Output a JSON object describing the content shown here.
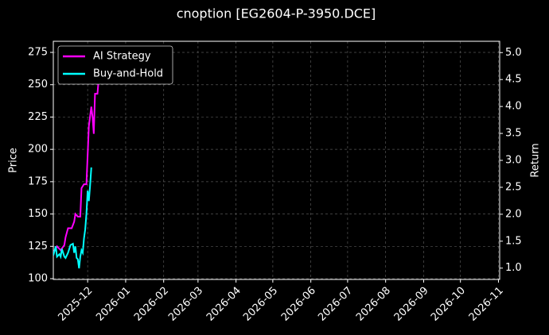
{
  "chart_data": {
    "type": "line",
    "title": "cnoption [EG2604-P-3950.DCE]",
    "ylabel": "Price",
    "y2label": "Return",
    "xlim": [
      -28,
      336
    ],
    "xticks": [
      {
        "value": 0,
        "label": "2025-12"
      },
      {
        "value": 31,
        "label": "2026-01"
      },
      {
        "value": 62,
        "label": "2026-02"
      },
      {
        "value": 90,
        "label": "2026-03"
      },
      {
        "value": 121,
        "label": "2026-04"
      },
      {
        "value": 151,
        "label": "2026-05"
      },
      {
        "value": 182,
        "label": "2026-06"
      },
      {
        "value": 212,
        "label": "2026-07"
      },
      {
        "value": 243,
        "label": "2026-08"
      },
      {
        "value": 274,
        "label": "2026-09"
      },
      {
        "value": 304,
        "label": "2026-10"
      },
      {
        "value": 335,
        "label": "2026-11"
      }
    ],
    "ylim": [
      99.4,
      283.6
    ],
    "yticks": [
      100,
      125,
      150,
      175,
      200,
      225,
      250,
      275
    ],
    "y2lim": [
      0.79,
      5.21
    ],
    "y2ticks": [
      {
        "value": 1,
        "label": "1.0"
      },
      1.5,
      {
        "value": 2,
        "label": "2.0"
      },
      2.5,
      {
        "value": 3,
        "label": "3.0"
      },
      3.5,
      {
        "value": 4,
        "label": "4.0"
      },
      4.5,
      {
        "value": 5,
        "label": "5.0"
      }
    ],
    "grid": true,
    "legend": "upper left",
    "series": [
      {
        "name": "AI Strategy",
        "color": "#ff00ff",
        "x": [
          -28,
          -25,
          -22,
          -19,
          -18,
          -16,
          -13,
          -11,
          -10,
          -8,
          -6,
          -5,
          -3,
          -1,
          1,
          3,
          4,
          5,
          6,
          8,
          9,
          10
        ],
        "values": [
          120,
          125,
          122,
          126,
          132,
          139,
          139,
          144,
          150,
          148,
          148,
          170,
          173,
          173,
          218,
          233,
          225,
          212,
          243,
          243,
          254,
          262
        ]
      },
      {
        "name": "Buy-and-Hold",
        "color": "#00ffff",
        "x": [
          -28,
          -26,
          -25,
          -23,
          -22,
          -21,
          -19,
          -18,
          -16,
          -14,
          -12,
          -11,
          -10,
          -9,
          -8,
          -7,
          -6,
          -5,
          -4,
          -3,
          -2,
          -1,
          0,
          1,
          2,
          3
        ],
        "values": [
          118,
          125,
          117,
          119,
          117,
          123,
          117,
          116,
          120,
          126,
          127,
          120,
          125,
          116,
          115,
          108,
          117,
          122,
          120,
          131,
          138,
          150,
          168,
          160,
          172,
          186
        ]
      }
    ]
  }
}
